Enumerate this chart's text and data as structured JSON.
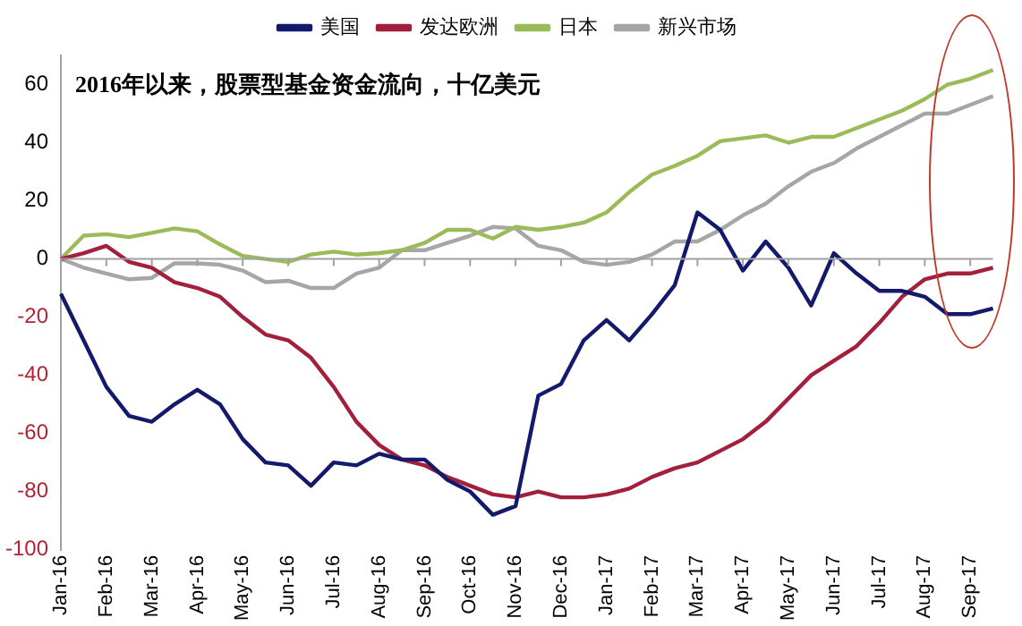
{
  "chart_data": {
    "type": "line",
    "title": "2016年以来，股票型基金资金流向，十亿美元",
    "categories": [
      "Jan-16",
      null,
      "Feb-16",
      null,
      "Mar-16",
      null,
      "Apr-16",
      null,
      "May-16",
      null,
      "Jun-16",
      null,
      "Jul-16",
      null,
      "Aug-16",
      null,
      "Sep-16",
      null,
      "Oct-16",
      null,
      "Nov-16",
      null,
      "Dec-16",
      null,
      "Jan-17",
      null,
      "Feb-17",
      null,
      "Mar-17",
      null,
      "Apr-17",
      null,
      "May-17",
      null,
      "Jun-17",
      null,
      "Jul-17",
      null,
      "Aug-17",
      null,
      "Sep-17",
      null
    ],
    "series": [
      {
        "name": "美国",
        "color": "#141a6b",
        "values": [
          -12,
          -28,
          -44,
          -54,
          -56,
          -50,
          -45,
          -50,
          -62,
          -70,
          -71,
          -78,
          -70,
          -71,
          -67,
          -69,
          -69,
          -76,
          -80,
          -88,
          -85,
          -47,
          -43,
          -28,
          -21,
          -28,
          -19,
          -9,
          16,
          10,
          -4,
          6,
          -3,
          -16,
          2,
          -5,
          -11,
          -11,
          -13,
          -19,
          -19,
          -17
        ]
      },
      {
        "name": "发达欧洲",
        "color": "#a2203c",
        "values": [
          0,
          2,
          4.5,
          -1,
          -3,
          -8,
          -10,
          -13,
          -20,
          -26,
          -28,
          -34,
          -44,
          -56,
          -64,
          -69,
          -71,
          -75,
          -78,
          -81,
          -82,
          -80,
          -82,
          -82,
          -81,
          -79,
          -75,
          -72,
          -70,
          -66,
          -62,
          -56,
          -48,
          -40,
          -35,
          -30,
          -22,
          -13,
          -7,
          -5,
          -5,
          -3
        ]
      },
      {
        "name": "日本",
        "color": "#9bbb59",
        "values": [
          0,
          8,
          8.5,
          7.5,
          9,
          10.5,
          9.5,
          5,
          1,
          0,
          -1,
          1.5,
          2.5,
          1.5,
          2,
          3,
          5.5,
          10,
          10,
          7,
          11,
          10,
          11,
          12.5,
          16,
          23,
          29,
          32,
          35.5,
          40.5,
          41.5,
          42.5,
          40,
          42,
          42,
          45,
          48,
          51,
          55,
          60,
          62,
          65
        ]
      },
      {
        "name": "新兴市场",
        "color": "#a6a6a6",
        "values": [
          0,
          -3,
          -5,
          -7,
          -6.5,
          -1.5,
          -1.5,
          -2,
          -4,
          -8,
          -7.5,
          -10,
          -10,
          -5,
          -3,
          3,
          3,
          5.5,
          8,
          11,
          10.5,
          4.5,
          3,
          -1,
          -2,
          -1,
          1.5,
          6,
          6,
          10,
          15,
          19,
          25,
          30,
          33,
          38,
          42,
          46,
          50,
          50,
          53,
          56
        ]
      }
    ],
    "ylim": [
      -100,
      70
    ],
    "yticks": [
      -100,
      -80,
      -60,
      -40,
      -20,
      0,
      20,
      40,
      60
    ],
    "ref_lines": [
      {
        "axis": "y",
        "value": 0,
        "color": "#a0a0a0"
      }
    ],
    "grid": false,
    "legend": "top",
    "marker": "none",
    "line_style": "solid"
  }
}
